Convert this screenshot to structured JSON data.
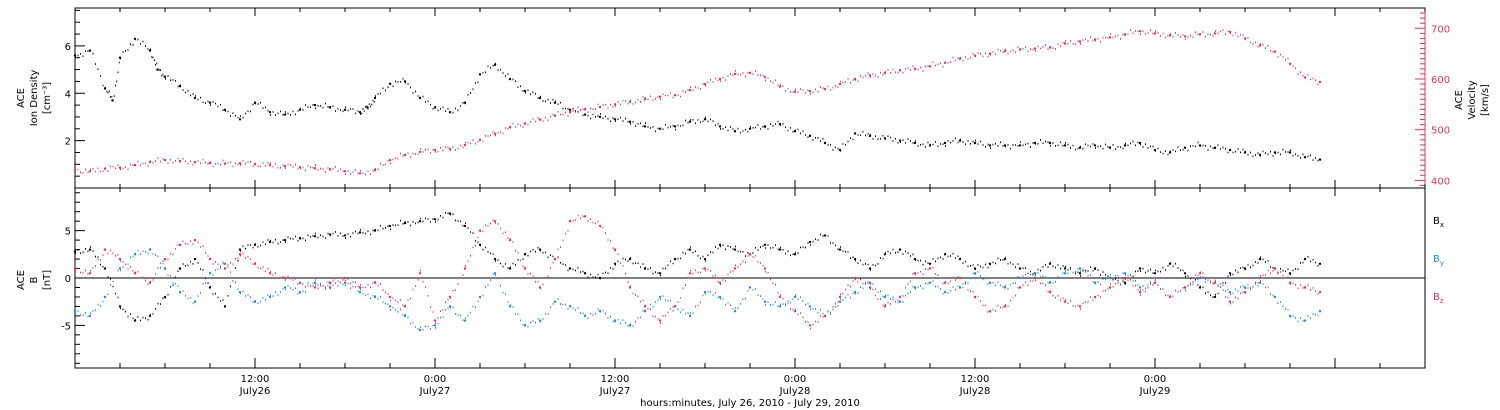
{
  "chart_data": [
    {
      "type": "scatter",
      "panel": "top",
      "left_axis": {
        "label_lines": [
          "ACE",
          "Ion Density",
          "[cm⁻³]"
        ],
        "ylim": [
          0,
          7.6
        ],
        "ticks": [
          2,
          4,
          6
        ],
        "tick_labels": [
          "2",
          "4",
          "6"
        ],
        "color": "#000000"
      },
      "right_axis": {
        "label_lines": [
          "ACE",
          "Velocity",
          "[km/s]"
        ],
        "ylim": [
          385,
          740
        ],
        "ticks": [
          400,
          500,
          600,
          700
        ],
        "tick_labels": [
          "400",
          "500",
          "600",
          "700"
        ],
        "color": "#e8305a"
      },
      "series": [
        {
          "axis": "left",
          "color": "#000000",
          "x": [
            0,
            1,
            2,
            2.5,
            3,
            4,
            5,
            5.5,
            6,
            7,
            8,
            9,
            10,
            11,
            12,
            13,
            14,
            15,
            16,
            17,
            18,
            19,
            19.5,
            20,
            21,
            22,
            23,
            24,
            25,
            26,
            27,
            28,
            29,
            30,
            31,
            32,
            33,
            34,
            35,
            36,
            37,
            38,
            39,
            40,
            41,
            42,
            43,
            44,
            45,
            46,
            47,
            48,
            49,
            50,
            51,
            52,
            53,
            54,
            55,
            56,
            57,
            58,
            59,
            60,
            61,
            62,
            63,
            64,
            65,
            66,
            67,
            68,
            69,
            70,
            71,
            72,
            73,
            74,
            75,
            76,
            77,
            78,
            79,
            80,
            81,
            82,
            83
          ],
          "y": [
            5.6,
            5.8,
            4.2,
            3.7,
            5.5,
            6.3,
            5.8,
            5.0,
            4.7,
            4.3,
            3.8,
            3.6,
            3.3,
            2.9,
            3.6,
            3.2,
            3.1,
            3.3,
            3.5,
            3.4,
            3.3,
            3.2,
            3.4,
            3.8,
            4.4,
            4.5,
            3.8,
            3.4,
            3.2,
            3.6,
            4.8,
            5.2,
            4.6,
            4.1,
            3.8,
            3.6,
            3.3,
            3.1,
            3.0,
            2.9,
            2.8,
            2.6,
            2.5,
            2.6,
            2.8,
            2.9,
            2.6,
            2.4,
            2.5,
            2.6,
            2.7,
            2.4,
            2.2,
            1.9,
            1.6,
            2.3,
            2.2,
            2.1,
            2.0,
            1.9,
            1.8,
            1.9,
            2.0,
            1.9,
            1.8,
            1.8,
            1.8,
            1.9,
            1.9,
            1.8,
            1.7,
            1.8,
            1.7,
            1.8,
            1.9,
            1.6,
            1.5,
            1.7,
            1.8,
            1.7,
            1.6,
            1.5,
            1.4,
            1.5,
            1.5,
            1.3,
            1.2
          ]
        },
        {
          "axis": "right",
          "color": "#e8305a",
          "x": [
            0,
            1,
            2,
            3,
            4,
            5,
            6,
            7,
            8,
            9,
            10,
            11,
            12,
            13,
            14,
            15,
            16,
            17,
            18,
            19,
            20,
            21,
            22,
            23,
            24,
            25,
            26,
            27,
            28,
            29,
            30,
            31,
            32,
            33,
            34,
            35,
            36,
            37,
            38,
            39,
            40,
            41,
            42,
            43,
            44,
            45,
            46,
            47,
            48,
            49,
            50,
            51,
            52,
            53,
            54,
            55,
            56,
            57,
            58,
            59,
            60,
            61,
            62,
            63,
            64,
            65,
            66,
            67,
            68,
            69,
            70,
            71,
            72,
            73,
            74,
            75,
            76,
            77,
            78,
            79,
            80,
            81,
            82,
            83
          ],
          "y": [
            420,
            418,
            423,
            425,
            430,
            436,
            440,
            438,
            436,
            434,
            433,
            434,
            432,
            430,
            428,
            426,
            424,
            422,
            418,
            414,
            420,
            440,
            450,
            456,
            460,
            462,
            470,
            480,
            492,
            505,
            512,
            520,
            528,
            535,
            540,
            545,
            550,
            555,
            560,
            565,
            568,
            578,
            590,
            600,
            610,
            612,
            604,
            585,
            575,
            576,
            580,
            590,
            600,
            607,
            612,
            617,
            620,
            625,
            632,
            640,
            646,
            650,
            655,
            658,
            660,
            662,
            670,
            674,
            678,
            682,
            688,
            694,
            690,
            686,
            684,
            688,
            690,
            693,
            680,
            666,
            654,
            630,
            603,
            594
          ]
        }
      ]
    },
    {
      "type": "scatter",
      "panel": "bottom",
      "left_axis": {
        "label_lines": [
          "ACE",
          "B",
          "[nT]"
        ],
        "ylim": [
          -9.5,
          9.5
        ],
        "ticks": [
          -5,
          0,
          5
        ],
        "tick_labels": [
          "-5",
          "0",
          "5"
        ],
        "zero_line": true
      },
      "legend": {
        "placement": "right",
        "entries": [
          {
            "label": "B",
            "subscript": "x",
            "color": "#000000"
          },
          {
            "label": "B",
            "subscript": "y",
            "color": "#1f86e0"
          },
          {
            "label": "B",
            "subscript": "z",
            "color": "#e8305a"
          }
        ]
      },
      "series": [
        {
          "label": "Bx",
          "color": "#000000",
          "x": [
            0,
            1,
            2,
            3,
            4,
            5,
            6,
            7,
            8,
            9,
            10,
            11,
            12,
            13,
            14,
            15,
            16,
            17,
            18,
            19,
            20,
            21,
            22,
            23,
            24,
            25,
            26,
            27,
            28,
            29,
            30,
            31,
            32,
            33,
            34,
            35,
            36,
            37,
            38,
            39,
            40,
            41,
            42,
            43,
            44,
            45,
            46,
            47,
            48,
            49,
            50,
            51,
            52,
            53,
            54,
            55,
            56,
            57,
            58,
            59,
            60,
            61,
            62,
            63,
            64,
            65,
            66,
            67,
            68,
            69,
            70,
            71,
            72,
            73,
            74,
            75,
            76,
            77,
            78,
            79,
            80,
            81,
            82,
            83
          ],
          "y": [
            2.8,
            3.0,
            1.0,
            -3.0,
            -4.5,
            -4.0,
            -2.0,
            1.0,
            2.0,
            -1.0,
            -3.0,
            3.0,
            3.5,
            3.8,
            4.0,
            4.2,
            4.4,
            4.6,
            4.5,
            4.8,
            5.0,
            5.5,
            5.8,
            6.0,
            6.2,
            6.8,
            5.5,
            3.5,
            2.0,
            1.0,
            2.5,
            3.0,
            2.0,
            1.0,
            0.5,
            0.0,
            1.5,
            2.0,
            1.0,
            0.5,
            2.0,
            3.0,
            2.0,
            3.5,
            3.0,
            2.5,
            3.5,
            3.0,
            2.5,
            3.8,
            4.5,
            3.0,
            2.0,
            1.0,
            2.5,
            3.0,
            2.0,
            1.5,
            2.5,
            2.0,
            1.0,
            1.5,
            2.0,
            1.0,
            0.5,
            1.5,
            1.0,
            0.5,
            1.0,
            0.0,
            -0.5,
            1.0,
            0.5,
            1.5,
            0.5,
            -1.0,
            -2.0,
            0.5,
            1.0,
            2.0,
            1.0,
            0.5,
            2.0,
            1.5
          ]
        },
        {
          "label": "By",
          "color": "#1f86e0",
          "x": [
            0,
            1,
            2,
            3,
            4,
            5,
            6,
            7,
            8,
            9,
            10,
            11,
            12,
            13,
            14,
            15,
            16,
            17,
            18,
            19,
            20,
            21,
            22,
            23,
            24,
            25,
            26,
            27,
            28,
            29,
            30,
            31,
            32,
            33,
            34,
            35,
            36,
            37,
            38,
            39,
            40,
            41,
            42,
            43,
            44,
            45,
            46,
            47,
            48,
            49,
            50,
            51,
            52,
            53,
            54,
            55,
            56,
            57,
            58,
            59,
            60,
            61,
            62,
            63,
            64,
            65,
            66,
            67,
            68,
            69,
            70,
            71,
            72,
            73,
            74,
            75,
            76,
            77,
            78,
            79,
            80,
            81,
            82,
            83
          ],
          "y": [
            -3.5,
            -4.0,
            -2.0,
            1.0,
            2.5,
            3.0,
            1.0,
            -1.5,
            -2.5,
            0.5,
            1.5,
            -1.5,
            -2.5,
            -2.0,
            -1.0,
            -1.5,
            -0.5,
            -1.0,
            -0.5,
            -1.5,
            -2.0,
            -3.0,
            -4.0,
            -5.5,
            -5.0,
            -3.0,
            -4.5,
            -2.0,
            0.5,
            -3.0,
            -5.0,
            -4.5,
            -2.5,
            -3.0,
            -4.0,
            -3.5,
            -4.5,
            -5.0,
            -3.5,
            -2.0,
            -3.0,
            -4.0,
            -1.5,
            -2.0,
            -3.5,
            -1.0,
            -2.5,
            -3.0,
            -2.0,
            -3.0,
            -4.0,
            -2.5,
            -1.5,
            -0.5,
            -2.0,
            -2.5,
            -1.0,
            -0.5,
            -1.5,
            -1.0,
            0.5,
            -0.5,
            -1.0,
            0.0,
            0.5,
            -0.5,
            0.5,
            1.0,
            -0.5,
            0.0,
            0.5,
            -1.0,
            -0.5,
            -2.0,
            -1.0,
            0.0,
            -0.5,
            -1.5,
            -1.0,
            -0.5,
            -2.0,
            -4.0,
            -4.5,
            -3.5
          ]
        },
        {
          "label": "Bz",
          "color": "#e8305a",
          "x": [
            0,
            1,
            2,
            3,
            4,
            5,
            6,
            7,
            8,
            9,
            10,
            11,
            12,
            13,
            14,
            15,
            16,
            17,
            18,
            19,
            20,
            21,
            22,
            23,
            24,
            25,
            26,
            27,
            28,
            29,
            30,
            31,
            32,
            33,
            34,
            35,
            36,
            37,
            38,
            39,
            40,
            41,
            42,
            43,
            44,
            45,
            46,
            47,
            48,
            49,
            50,
            51,
            52,
            53,
            54,
            55,
            56,
            57,
            58,
            59,
            60,
            61,
            62,
            63,
            64,
            65,
            66,
            67,
            68,
            69,
            70,
            71,
            72,
            73,
            74,
            75,
            76,
            77,
            78,
            79,
            80,
            81,
            82,
            83
          ],
          "y": [
            1.0,
            0.5,
            3.0,
            2.0,
            0.5,
            -0.5,
            2.0,
            3.5,
            4.0,
            2.0,
            1.0,
            2.5,
            1.5,
            0.5,
            0.0,
            -0.5,
            -1.0,
            -0.5,
            0.0,
            -1.0,
            -0.5,
            -2.0,
            -3.0,
            0.5,
            -4.5,
            -2.0,
            1.0,
            5.0,
            6.0,
            4.0,
            1.0,
            -1.0,
            2.0,
            6.0,
            6.5,
            5.5,
            3.0,
            -1.0,
            -3.0,
            -4.5,
            -3.0,
            0.5,
            1.0,
            -0.5,
            1.0,
            2.5,
            1.0,
            -2.0,
            -3.5,
            -5.0,
            -4.0,
            -2.0,
            0.0,
            -1.0,
            -3.0,
            -2.0,
            0.5,
            1.0,
            -0.5,
            0.0,
            -2.0,
            -3.5,
            -3.0,
            -1.0,
            0.0,
            -1.5,
            -2.5,
            -3.0,
            -2.0,
            -1.0,
            0.0,
            -1.5,
            -0.5,
            -2.0,
            -1.0,
            0.5,
            -0.5,
            -2.5,
            -1.5,
            0.0,
            1.0,
            -0.5,
            -1.0,
            -1.5
          ]
        }
      ]
    }
  ],
  "x_axis": {
    "xlim": [
      0,
      90
    ],
    "tick_positions": [
      0,
      12,
      24,
      36,
      48,
      60,
      72,
      84
    ],
    "major_tick_labels": [
      {
        "x": 12,
        "time": "12:00",
        "date": "July26"
      },
      {
        "x": 24,
        "time": "0:00",
        "date": "July27"
      },
      {
        "x": 36,
        "time": "12:00",
        "date": "July27"
      },
      {
        "x": 48,
        "time": "0:00",
        "date": "July28"
      },
      {
        "x": 60,
        "time": "12:00",
        "date": "July28"
      },
      {
        "x": 72,
        "time": "0:00",
        "date": "July29"
      }
    ],
    "title": "hours:minutes, July 26, 2010 - July 29, 2010"
  }
}
